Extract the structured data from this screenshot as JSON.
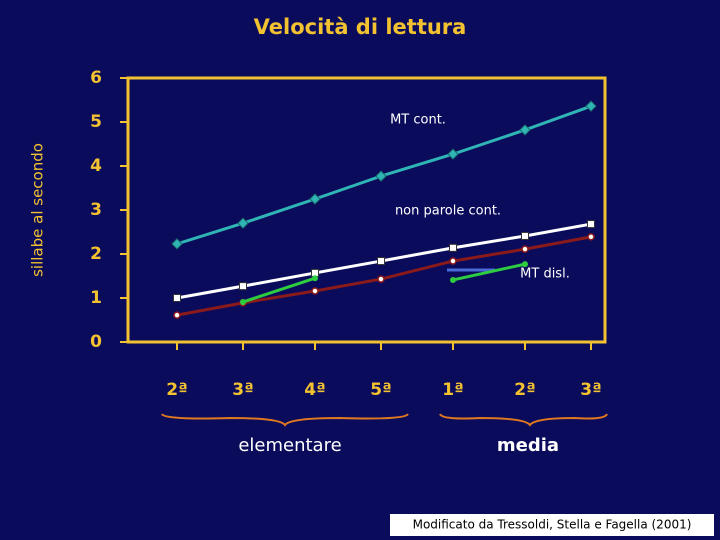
{
  "chart_data": {
    "type": "line",
    "title": "Velocità di lettura",
    "y_label": "sillabe al secondo",
    "categories": [
      "2ª",
      "3ª",
      "4ª",
      "5ª",
      "1ª",
      "2ª",
      "3ª"
    ],
    "groups": [
      "elementare",
      "media"
    ],
    "ylim": [
      0,
      6
    ],
    "yticks": [
      0,
      1,
      2,
      3,
      4,
      5,
      6
    ],
    "series": [
      {
        "name": "MT cont.",
        "color": "#2fb5b5",
        "marker": "diamond",
        "values": [
          2.23,
          2.7,
          3.25,
          3.77,
          4.27,
          4.82,
          5.36
        ]
      },
      {
        "name": "non parole cont.",
        "color": "#ffffff",
        "marker": "square",
        "values": [
          1.0,
          1.27,
          1.57,
          1.84,
          2.14,
          2.41,
          2.68
        ]
      },
      {
        "color": "#8b1a1a",
        "marker": "circle",
        "values": [
          0.61,
          0.89,
          1.16,
          1.43,
          1.84,
          2.11,
          2.39
        ]
      },
      {
        "name": "MT disl.",
        "color": "#2ecc40",
        "marker": "dot",
        "values": [
          null,
          0.91,
          1.45,
          null,
          1.41,
          1.77,
          null
        ]
      }
    ],
    "source": "Modificato da Tressoldi, Stella e Fagella (2001)"
  }
}
